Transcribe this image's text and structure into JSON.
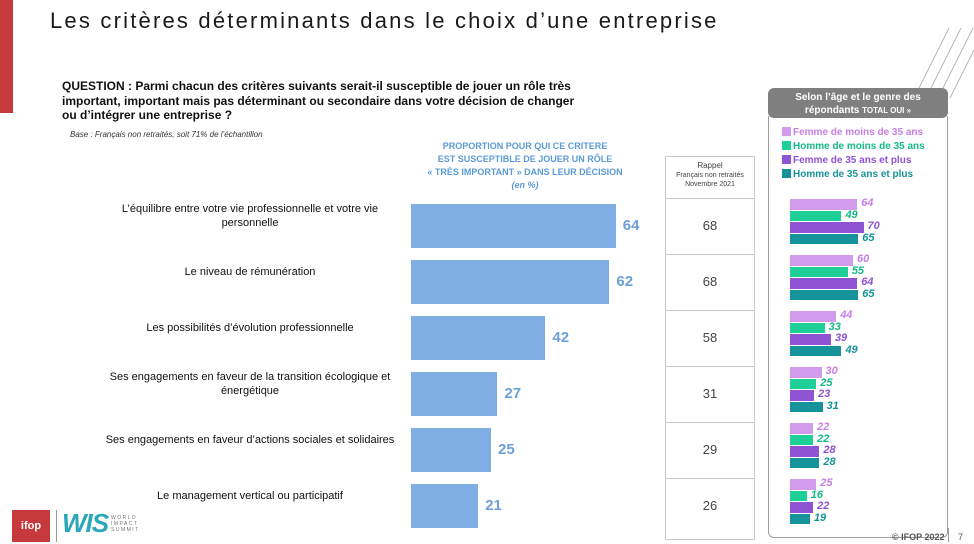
{
  "title": "Les critères déterminants dans le choix d’une entreprise",
  "question": "QUESTION : Parmi chacun des critères suivants serait-il susceptible de jouer un rôle très important, important mais pas déterminant ou secondaire dans votre décision de changer ou d’intégrer une entreprise ?",
  "base": "Base : Français non retraités, soit 71% de l’échantillon",
  "proportion_header": {
    "line1": "PROPORTION POUR QUI CE CRITERE",
    "line2": "EST SUSCEPTIBLE DE JOUER UN RÔLE",
    "line3": "« TRÈS IMPORTANT » DANS LEUR DÉCISION",
    "line4": "(en %)"
  },
  "rappel_header": {
    "line1": "Rappel",
    "line2": "Français non retraités",
    "line3": "Novembre 2021"
  },
  "right_panel": {
    "header_line1": "Selon l’âge et le genre des",
    "header_line2a": "répondants ",
    "header_line2b": "TOTAL OUI »"
  },
  "colors": {
    "bar": "#7eaee3",
    "value_text": "#6f9fd8",
    "femme_moins_35": "#d39bec",
    "homme_moins_35": "#1fcf9a",
    "femme_35_plus": "#8e54d4",
    "homme_35_plus": "#16939a"
  },
  "chart_data": [
    {
      "type": "bar",
      "orientation": "horizontal",
      "categories": [
        "L’équilibre entre votre vie professionnelle et votre vie personnelle",
        "Le niveau de rémunération",
        "Les possibilités d’évolution professionnelle",
        "Ses engagements en faveur de la transition écologique et énergétique",
        "Ses engagements en faveur d’actions sociales et solidaires",
        "Le management vertical ou participatif"
      ],
      "values": [
        64,
        62,
        42,
        27,
        25,
        21
      ],
      "rappel_values": [
        68,
        68,
        58,
        31,
        29,
        26
      ],
      "xlim": [
        0,
        100
      ]
    },
    {
      "type": "bar",
      "orientation": "horizontal",
      "legend": [
        "Femme de moins de 35 ans",
        "Homme de moins de 35 ans",
        "Femme de 35 ans et plus",
        "Homme de 35 ans et plus"
      ],
      "series": [
        {
          "name": "Femme de moins de 35 ans",
          "values": [
            64,
            60,
            44,
            30,
            22,
            25
          ]
        },
        {
          "name": "Homme de moins de 35 ans",
          "values": [
            49,
            55,
            33,
            25,
            22,
            16
          ]
        },
        {
          "name": "Femme de 35 ans et plus",
          "values": [
            70,
            64,
            39,
            23,
            28,
            22
          ]
        },
        {
          "name": "Homme de 35 ans et plus",
          "values": [
            65,
            65,
            49,
            31,
            28,
            19
          ]
        }
      ],
      "xlim": [
        0,
        100
      ]
    }
  ],
  "footer": {
    "logo_ifop": "ifop",
    "logo_wis": "WIS",
    "logo_wis_sub": "WORLD IMPACT SUMMIT",
    "copyright": "© IFOP 2022",
    "page": "7"
  }
}
